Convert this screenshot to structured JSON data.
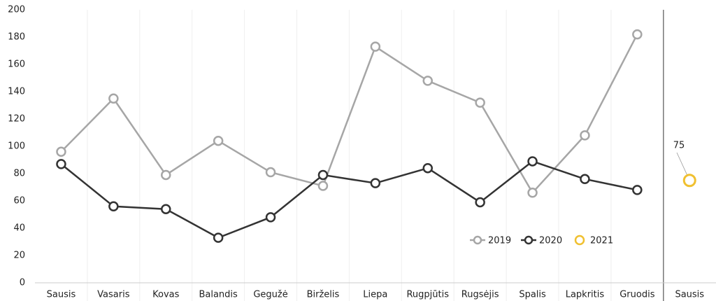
{
  "chart_data": {
    "type": "line",
    "categories": [
      "Sausis",
      "Vasaris",
      "Kovas",
      "Balandis",
      "Gegužė",
      "Birželis",
      "Liepa",
      "Rugpjūtis",
      "Rugsėjis",
      "Spalis",
      "Lapkritis",
      "Gruodis",
      "Sausis"
    ],
    "series": [
      {
        "name": "2019",
        "color": "#a6a6a6",
        "values": [
          96,
          135,
          79,
          104,
          81,
          71,
          173,
          148,
          132,
          66,
          108,
          182,
          null
        ]
      },
      {
        "name": "2020",
        "color": "#333333",
        "values": [
          87,
          56,
          54,
          33,
          48,
          79,
          73,
          84,
          59,
          89,
          76,
          68,
          null
        ]
      },
      {
        "name": "2021",
        "color": "#f0c030",
        "values": [
          null,
          null,
          null,
          null,
          null,
          null,
          null,
          null,
          null,
          null,
          null,
          null,
          75
        ]
      }
    ],
    "ylim": [
      0,
      200
    ],
    "yticks": [
      0,
      20,
      40,
      60,
      80,
      100,
      120,
      140,
      160,
      180,
      200
    ]
  }
}
